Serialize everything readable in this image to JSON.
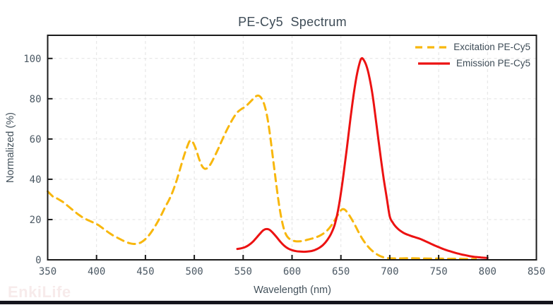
{
  "page": {
    "watermark": "EnkiLife"
  },
  "chart_data": {
    "type": "line",
    "title": "PE-Cy5  Spectrum",
    "xlabel": "Wavelength (nm)",
    "ylabel": "Normalized (%)",
    "xlim": [
      350,
      850
    ],
    "ylim": [
      0,
      111.5
    ],
    "xticks": [
      350,
      400,
      450,
      500,
      550,
      600,
      650,
      700,
      750,
      800,
      850
    ],
    "yticks": [
      0,
      20,
      40,
      60,
      80,
      100
    ],
    "grid": true,
    "legend": {
      "position": "top-right",
      "entries": [
        "Excitation PE-Cy5",
        "Emission PE-Cy5"
      ]
    },
    "colors": {
      "excitation": "#F8B70D",
      "emission": "#EC1212",
      "grid": "#E2E2E2",
      "spine": "#1B1B1B",
      "tick_text": "#4C5964",
      "title_text": "#3E4C57",
      "watermark": "#F7EBEB",
      "bottom_bar": "#14141C"
    },
    "series": [
      {
        "name": "Excitation PE-Cy5",
        "color": "#F8B70D",
        "style": "dashed",
        "points": [
          [
            350,
            34
          ],
          [
            353,
            32.5
          ],
          [
            356,
            31.2
          ],
          [
            359,
            30.6
          ],
          [
            362,
            29.8
          ],
          [
            366,
            28.6
          ],
          [
            370,
            27
          ],
          [
            374,
            25.4
          ],
          [
            378,
            23.8
          ],
          [
            382,
            22.3
          ],
          [
            386,
            21
          ],
          [
            390,
            20
          ],
          [
            394,
            19.1
          ],
          [
            398,
            18.2
          ],
          [
            402,
            17.2
          ],
          [
            406,
            15.8
          ],
          [
            410,
            14.4
          ],
          [
            414,
            13
          ],
          [
            418,
            11.8
          ],
          [
            422,
            10.8
          ],
          [
            426,
            9.8
          ],
          [
            430,
            8.9
          ],
          [
            434,
            8.2
          ],
          [
            438,
            7.9
          ],
          [
            442,
            8
          ],
          [
            446,
            8.8
          ],
          [
            450,
            10.3
          ],
          [
            454,
            12.4
          ],
          [
            458,
            15.2
          ],
          [
            462,
            18.4
          ],
          [
            466,
            22
          ],
          [
            470,
            26
          ],
          [
            474,
            29.6
          ],
          [
            478,
            34
          ],
          [
            482,
            39.5
          ],
          [
            486,
            46
          ],
          [
            490,
            52.5
          ],
          [
            493,
            56.5
          ],
          [
            495,
            58.8
          ],
          [
            497,
            59.3
          ],
          [
            499,
            58
          ],
          [
            502,
            54.5
          ],
          [
            505,
            50
          ],
          [
            508,
            46.5
          ],
          [
            511,
            45.2
          ],
          [
            514,
            45.8
          ],
          [
            517,
            47.8
          ],
          [
            520,
            50.6
          ],
          [
            524,
            54.6
          ],
          [
            528,
            59
          ],
          [
            532,
            63.2
          ],
          [
            536,
            67
          ],
          [
            540,
            70.5
          ],
          [
            544,
            73.2
          ],
          [
            548,
            74.8
          ],
          [
            552,
            76
          ],
          [
            556,
            77.8
          ],
          [
            560,
            79.8
          ],
          [
            563,
            81.2
          ],
          [
            566,
            81.5
          ],
          [
            569,
            80
          ],
          [
            572,
            76.5
          ],
          [
            575,
            70
          ],
          [
            578,
            60
          ],
          [
            581,
            48.5
          ],
          [
            584,
            37
          ],
          [
            587,
            26.5
          ],
          [
            590,
            18.5
          ],
          [
            593,
            13.5
          ],
          [
            596,
            11
          ],
          [
            600,
            9.7
          ],
          [
            604,
            9.2
          ],
          [
            608,
            9.2
          ],
          [
            612,
            9.5
          ],
          [
            616,
            10
          ],
          [
            620,
            10.5
          ],
          [
            624,
            11.1
          ],
          [
            628,
            11.9
          ],
          [
            632,
            13
          ],
          [
            636,
            14.6
          ],
          [
            640,
            16.9
          ],
          [
            644,
            20
          ],
          [
            648,
            23.2
          ],
          [
            651,
            25
          ],
          [
            654,
            24.9
          ],
          [
            657,
            23.2
          ],
          [
            660,
            21
          ],
          [
            664,
            17.6
          ],
          [
            668,
            13.8
          ],
          [
            672,
            10.4
          ],
          [
            676,
            7.6
          ],
          [
            680,
            5.4
          ],
          [
            684,
            3.7
          ],
          [
            688,
            2.4
          ],
          [
            692,
            1.5
          ],
          [
            696,
            1
          ],
          [
            700,
            0.8
          ],
          [
            710,
            0.7
          ],
          [
            720,
            0.8
          ],
          [
            730,
            0.7
          ],
          [
            740,
            0.6
          ],
          [
            750,
            0.6
          ],
          [
            760,
            0.5
          ],
          [
            770,
            0.5
          ],
          [
            780,
            0.4
          ],
          [
            788,
            0.4
          ]
        ]
      },
      {
        "name": "Emission PE-Cy5",
        "color": "#EC1212",
        "style": "solid",
        "points": [
          [
            544,
            5.4
          ],
          [
            548,
            5.7
          ],
          [
            552,
            6.3
          ],
          [
            556,
            7.4
          ],
          [
            560,
            9
          ],
          [
            564,
            11.2
          ],
          [
            568,
            13.4
          ],
          [
            571,
            14.8
          ],
          [
            574,
            15.3
          ],
          [
            577,
            14.9
          ],
          [
            580,
            13.6
          ],
          [
            584,
            11.4
          ],
          [
            588,
            9
          ],
          [
            592,
            7
          ],
          [
            596,
            5.6
          ],
          [
            600,
            4.8
          ],
          [
            604,
            4.3
          ],
          [
            608,
            4.1
          ],
          [
            612,
            4
          ],
          [
            616,
            4.1
          ],
          [
            620,
            4.4
          ],
          [
            624,
            5
          ],
          [
            628,
            6
          ],
          [
            632,
            7.5
          ],
          [
            636,
            9.8
          ],
          [
            640,
            13
          ],
          [
            644,
            18
          ],
          [
            648,
            27
          ],
          [
            652,
            40
          ],
          [
            656,
            55
          ],
          [
            660,
            71
          ],
          [
            663,
            82
          ],
          [
            666,
            91
          ],
          [
            669,
            97.5
          ],
          [
            671,
            100
          ],
          [
            673,
            99.5
          ],
          [
            676,
            96.5
          ],
          [
            679,
            91
          ],
          [
            682,
            83
          ],
          [
            685,
            72.5
          ],
          [
            688,
            61
          ],
          [
            691,
            50
          ],
          [
            694,
            39.5
          ],
          [
            697,
            30.5
          ],
          [
            700,
            21.5
          ],
          [
            703,
            18.5
          ],
          [
            706,
            16.5
          ],
          [
            710,
            14.7
          ],
          [
            714,
            13.4
          ],
          [
            718,
            12.5
          ],
          [
            722,
            11.8
          ],
          [
            726,
            11.2
          ],
          [
            730,
            10.6
          ],
          [
            734,
            9.8
          ],
          [
            738,
            8.9
          ],
          [
            742,
            8
          ],
          [
            746,
            7.1
          ],
          [
            750,
            6.3
          ],
          [
            754,
            5.5
          ],
          [
            758,
            4.8
          ],
          [
            762,
            4.2
          ],
          [
            766,
            3.6
          ],
          [
            770,
            3.1
          ],
          [
            774,
            2.6
          ],
          [
            778,
            2.2
          ],
          [
            782,
            1.8
          ],
          [
            786,
            1.5
          ],
          [
            790,
            1.3
          ],
          [
            795,
            1.1
          ],
          [
            800,
            0.9
          ]
        ]
      }
    ]
  }
}
